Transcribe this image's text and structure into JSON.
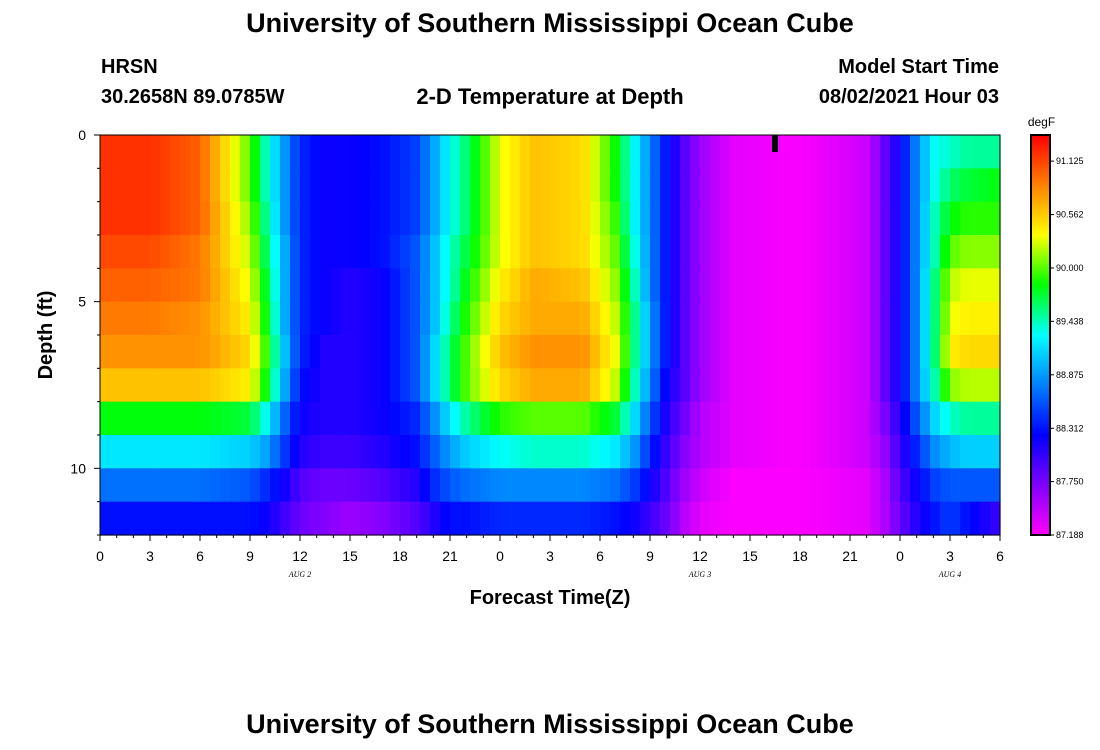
{
  "header": {
    "title_top": "University of Southern Mississippi Ocean Cube",
    "station": "HRSN",
    "coords": "30.2658N  89.0785W",
    "plot_title": "2-D Temperature at Depth",
    "model_label": "Model Start Time",
    "model_time": "08/02/2021 Hour 03",
    "title_bottom": "University of Southern Mississippi Ocean Cube"
  },
  "chart_data": {
    "type": "heatmap",
    "title": "2-D Temperature at Depth",
    "xlabel": "Forecast Time(Z)",
    "ylabel": "Depth (ft)",
    "x_ticks": [
      "0",
      "3",
      "6",
      "9",
      "12",
      "15",
      "18",
      "21",
      "0",
      "3",
      "6",
      "9",
      "12",
      "15",
      "18",
      "21",
      "0",
      "3",
      "6"
    ],
    "x_range_hours": [
      0,
      54
    ],
    "date_labels": [
      {
        "label": "AUG 2",
        "hour": 12
      },
      {
        "label": "AUG 3",
        "hour": 36
      },
      {
        "label": "AUG 4",
        "hour": 51
      }
    ],
    "y_ticks": [
      "0",
      "5",
      "10"
    ],
    "y_range_ft": [
      0,
      12
    ],
    "depths_ft": [
      0.5,
      1.5,
      2.5,
      3.5,
      4.5,
      5.5,
      6.5,
      7.5,
      8.5,
      9.5,
      10.5,
      11.5
    ],
    "time_nodes_hours": [
      0,
      3,
      6,
      9,
      10,
      11,
      12,
      13.5,
      15,
      17,
      19,
      20,
      21,
      22,
      24,
      26,
      29,
      31,
      32,
      33,
      34,
      35,
      36,
      38,
      42,
      46,
      47,
      48,
      49,
      50,
      51,
      52,
      54
    ],
    "values_degF": [
      [
        91.2,
        91.2,
        91.0,
        90.0,
        89.4,
        88.9,
        88.4,
        88.2,
        88.2,
        88.3,
        88.5,
        88.9,
        89.3,
        89.6,
        90.3,
        90.6,
        90.5,
        89.8,
        89.3,
        88.8,
        88.3,
        87.9,
        87.6,
        87.3,
        87.2,
        87.4,
        87.8,
        88.2,
        88.8,
        89.3,
        89.4,
        89.5,
        89.5
      ],
      [
        91.2,
        91.2,
        91.0,
        90.0,
        89.4,
        88.9,
        88.4,
        88.2,
        88.2,
        88.3,
        88.5,
        88.9,
        89.3,
        89.6,
        90.3,
        90.6,
        90.5,
        89.8,
        89.3,
        88.8,
        88.3,
        87.9,
        87.6,
        87.3,
        87.2,
        87.4,
        87.8,
        88.2,
        88.8,
        89.3,
        89.6,
        89.7,
        89.8
      ],
      [
        91.2,
        91.2,
        91.0,
        90.1,
        89.5,
        88.9,
        88.4,
        88.2,
        88.2,
        88.3,
        88.5,
        88.9,
        89.3,
        89.6,
        90.3,
        90.6,
        90.5,
        89.9,
        89.3,
        88.8,
        88.3,
        87.9,
        87.6,
        87.3,
        87.2,
        87.4,
        87.8,
        88.2,
        88.8,
        89.4,
        89.8,
        89.9,
        89.9
      ],
      [
        91.1,
        91.1,
        90.9,
        90.2,
        89.6,
        89.0,
        88.4,
        88.2,
        88.2,
        88.3,
        88.6,
        89.0,
        89.4,
        89.7,
        90.3,
        90.6,
        90.5,
        90.0,
        89.4,
        88.8,
        88.3,
        87.9,
        87.6,
        87.3,
        87.2,
        87.4,
        87.8,
        88.2,
        88.8,
        89.4,
        90.0,
        90.1,
        90.1
      ],
      [
        91.0,
        91.0,
        90.9,
        90.3,
        89.7,
        89.0,
        88.4,
        88.2,
        88.1,
        88.2,
        88.6,
        89.0,
        89.4,
        89.8,
        90.4,
        90.7,
        90.6,
        90.1,
        89.5,
        88.8,
        88.3,
        87.9,
        87.6,
        87.3,
        87.2,
        87.4,
        87.8,
        88.2,
        88.8,
        89.5,
        90.2,
        90.3,
        90.3
      ],
      [
        90.9,
        90.9,
        90.8,
        90.4,
        89.8,
        89.0,
        88.4,
        88.2,
        88.1,
        88.2,
        88.6,
        89.0,
        89.5,
        89.9,
        90.5,
        90.7,
        90.7,
        90.2,
        89.6,
        88.9,
        88.3,
        87.9,
        87.6,
        87.3,
        87.2,
        87.4,
        87.8,
        88.2,
        88.8,
        89.5,
        90.3,
        90.4,
        90.4
      ],
      [
        90.8,
        90.8,
        90.8,
        90.5,
        89.9,
        89.1,
        88.4,
        88.1,
        88.1,
        88.2,
        88.6,
        89.1,
        89.6,
        90.0,
        90.6,
        90.8,
        90.8,
        90.3,
        89.6,
        88.9,
        88.3,
        87.9,
        87.6,
        87.3,
        87.2,
        87.4,
        87.8,
        88.2,
        88.8,
        89.5,
        90.4,
        90.5,
        90.5
      ],
      [
        90.6,
        90.6,
        90.6,
        90.4,
        89.8,
        89.0,
        88.3,
        88.1,
        88.1,
        88.2,
        88.6,
        89.1,
        89.6,
        90.0,
        90.5,
        90.7,
        90.7,
        90.2,
        89.5,
        88.8,
        88.2,
        87.9,
        87.6,
        87.3,
        87.2,
        87.4,
        87.8,
        88.2,
        88.8,
        89.4,
        90.1,
        90.2,
        90.2
      ],
      [
        89.8,
        89.8,
        89.8,
        89.7,
        89.3,
        88.7,
        88.2,
        88.1,
        88.1,
        88.2,
        88.4,
        88.8,
        89.2,
        89.5,
        89.9,
        90.0,
        90.0,
        89.7,
        89.2,
        88.6,
        88.1,
        87.8,
        87.5,
        87.3,
        87.2,
        87.4,
        87.7,
        88.1,
        88.6,
        89.1,
        89.4,
        89.5,
        89.5
      ],
      [
        89.2,
        89.2,
        89.2,
        89.1,
        88.9,
        88.5,
        88.1,
        88.0,
        88.0,
        88.1,
        88.3,
        88.6,
        88.9,
        89.1,
        89.3,
        89.4,
        89.4,
        89.2,
        88.9,
        88.4,
        88.0,
        87.7,
        87.5,
        87.3,
        87.2,
        87.4,
        87.6,
        88.0,
        88.4,
        88.8,
        89.0,
        89.1,
        89.1
      ],
      [
        88.7,
        88.7,
        88.7,
        88.6,
        88.4,
        88.2,
        87.9,
        87.8,
        87.8,
        87.9,
        88.1,
        88.4,
        88.6,
        88.7,
        88.8,
        88.8,
        88.8,
        88.7,
        88.5,
        88.2,
        87.9,
        87.6,
        87.4,
        87.2,
        87.2,
        87.3,
        87.5,
        87.9,
        88.2,
        88.5,
        88.6,
        88.6,
        88.6
      ],
      [
        88.3,
        88.3,
        88.3,
        88.3,
        88.2,
        88.0,
        87.8,
        87.7,
        87.6,
        87.7,
        87.9,
        88.1,
        88.3,
        88.3,
        88.4,
        88.4,
        88.4,
        88.3,
        88.2,
        88.0,
        87.8,
        87.5,
        87.3,
        87.2,
        87.2,
        87.3,
        87.5,
        87.8,
        88.1,
        88.3,
        88.5,
        88.3,
        88.0
      ]
    ],
    "colorbar": {
      "unit": "degF",
      "min": 87.188,
      "max": 91.4,
      "tick_labels": [
        "91.125",
        "90.562",
        "90.000",
        "89.438",
        "88.875",
        "88.312",
        "87.750",
        "87.188"
      ],
      "tick_values": [
        91.125,
        90.562,
        90.0,
        89.438,
        88.875,
        88.312,
        87.75,
        87.188
      ]
    },
    "current_time_marker_hour": 40.5
  },
  "colors": {
    "scale": [
      "#ff00ff",
      "#8000ff",
      "#0000ff",
      "#0080ff",
      "#00ffff",
      "#00ff00",
      "#ffff00",
      "#ff8000",
      "#ff0000"
    ],
    "background": "#ffffff",
    "marker": "#000000"
  }
}
